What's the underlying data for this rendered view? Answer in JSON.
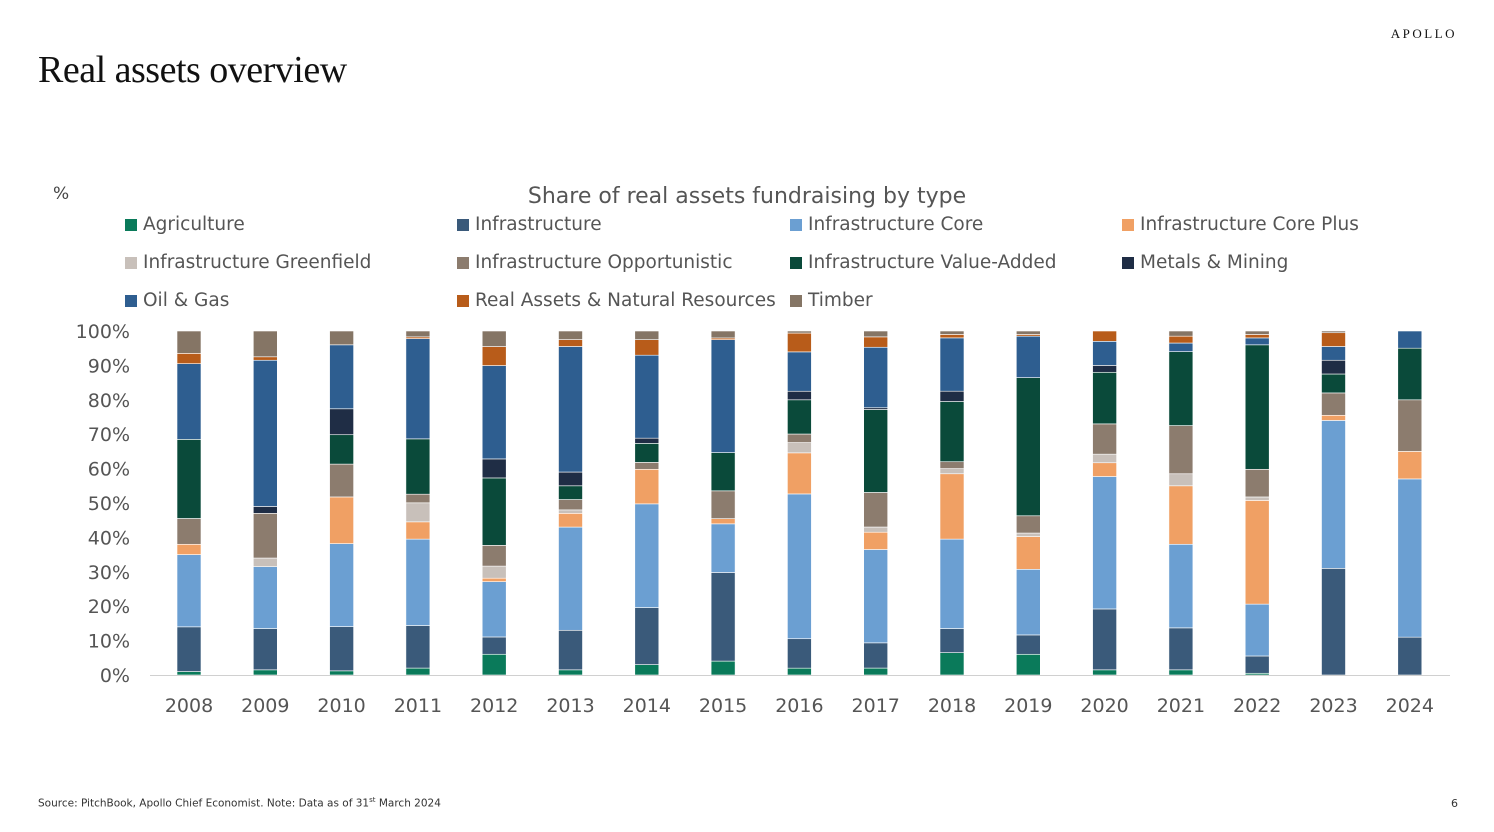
{
  "slide": {
    "title": "Real assets overview",
    "brand": "APOLLO",
    "page_number": "6",
    "source_note_main": "Source: PitchBook, Apollo Chief Economist. Note: Data as of 31",
    "source_note_sup": "st",
    "source_note_tail": " March 2024"
  },
  "chart_data": {
    "type": "bar",
    "stacked": true,
    "title": "Share of real assets fundraising by type",
    "unit_label": "%",
    "ylim": [
      0,
      100
    ],
    "y_ticks": [
      "0%",
      "10%",
      "20%",
      "30%",
      "40%",
      "50%",
      "60%",
      "70%",
      "80%",
      "90%",
      "100%"
    ],
    "categories": [
      "2008",
      "2009",
      "2010",
      "2011",
      "2012",
      "2013",
      "2014",
      "2015",
      "2016",
      "2017",
      "2018",
      "2019",
      "2020",
      "2021",
      "2022",
      "2023",
      "2024"
    ],
    "series": [
      {
        "name": "Agriculture",
        "color": "#0A7A5A",
        "values": [
          1,
          1.5,
          1.2,
          2,
          6,
          1.5,
          3,
          4,
          2,
          2,
          6.5,
          6,
          1.5,
          1.5,
          0.5,
          0,
          0
        ]
      },
      {
        "name": "Infrastructure",
        "color": "#3A5A7A",
        "values": [
          13,
          12,
          12.8,
          12.3,
          5,
          11.5,
          16.5,
          25.5,
          8.6,
          7.3,
          7,
          5.6,
          17.7,
          12.2,
          5,
          31,
          11
        ]
      },
      {
        "name": "Infrastructure Core",
        "color": "#6B9FD2",
        "values": [
          21,
          18,
          24,
          25,
          16,
          30,
          30,
          14,
          42.3,
          27,
          26,
          19,
          38.5,
          24.3,
          15,
          43,
          46
        ]
      },
      {
        "name": "Infrastructure Core Plus",
        "color": "#F0A064",
        "values": [
          3,
          0,
          13.5,
          5,
          1,
          4,
          10,
          1.5,
          12,
          5,
          19,
          9.5,
          4,
          17,
          30,
          1.5,
          8
        ]
      },
      {
        "name": "Infrastructure Greenfield",
        "color": "#C8C0BA",
        "values": [
          0,
          2.5,
          0,
          5.5,
          3.5,
          1,
          0,
          0,
          3,
          1.5,
          1.5,
          1,
          2.5,
          3.5,
          1,
          0,
          0
        ]
      },
      {
        "name": "Infrastructure Opportunistic",
        "color": "#8C7C6E",
        "values": [
          7.5,
          13,
          9.5,
          2.5,
          6,
          3,
          2,
          8,
          2.5,
          10,
          2,
          5,
          8.8,
          14,
          8,
          6.5,
          15
        ]
      },
      {
        "name": "Infrastructure Value-Added",
        "color": "#0A4A3A",
        "values": [
          23,
          0,
          8.5,
          16,
          19.5,
          4,
          5.5,
          11,
          10,
          24,
          17.5,
          40,
          15,
          21.5,
          36,
          5.5,
          15
        ]
      },
      {
        "name": "Metals & Mining",
        "color": "#1F2D45",
        "values": [
          0,
          2,
          7.5,
          0,
          5.5,
          4,
          1.5,
          0,
          2.5,
          0.5,
          3,
          0,
          2,
          0,
          0,
          4,
          0
        ]
      },
      {
        "name": "Oil & Gas",
        "color": "#2E5E90",
        "values": [
          22,
          42.5,
          18.5,
          29,
          27,
          36.5,
          24,
          32.5,
          11.5,
          17.5,
          15.5,
          12,
          7,
          2.5,
          2,
          4,
          5
        ]
      },
      {
        "name": "Real Assets & Natural Resources",
        "color": "#B85C1A",
        "values": [
          3,
          1,
          0,
          0.5,
          5.5,
          2,
          4.5,
          0.5,
          5.5,
          3,
          1,
          0.5,
          3,
          2,
          1,
          4,
          0
        ]
      },
      {
        "name": "Timber",
        "color": "#857565",
        "values": [
          6.5,
          7.5,
          4,
          1.7,
          4.5,
          2.5,
          2.5,
          2,
          0.6,
          1.7,
          1,
          1,
          0,
          1.5,
          1,
          0.5,
          0
        ]
      }
    ],
    "grid": false,
    "legend_position": "top"
  }
}
